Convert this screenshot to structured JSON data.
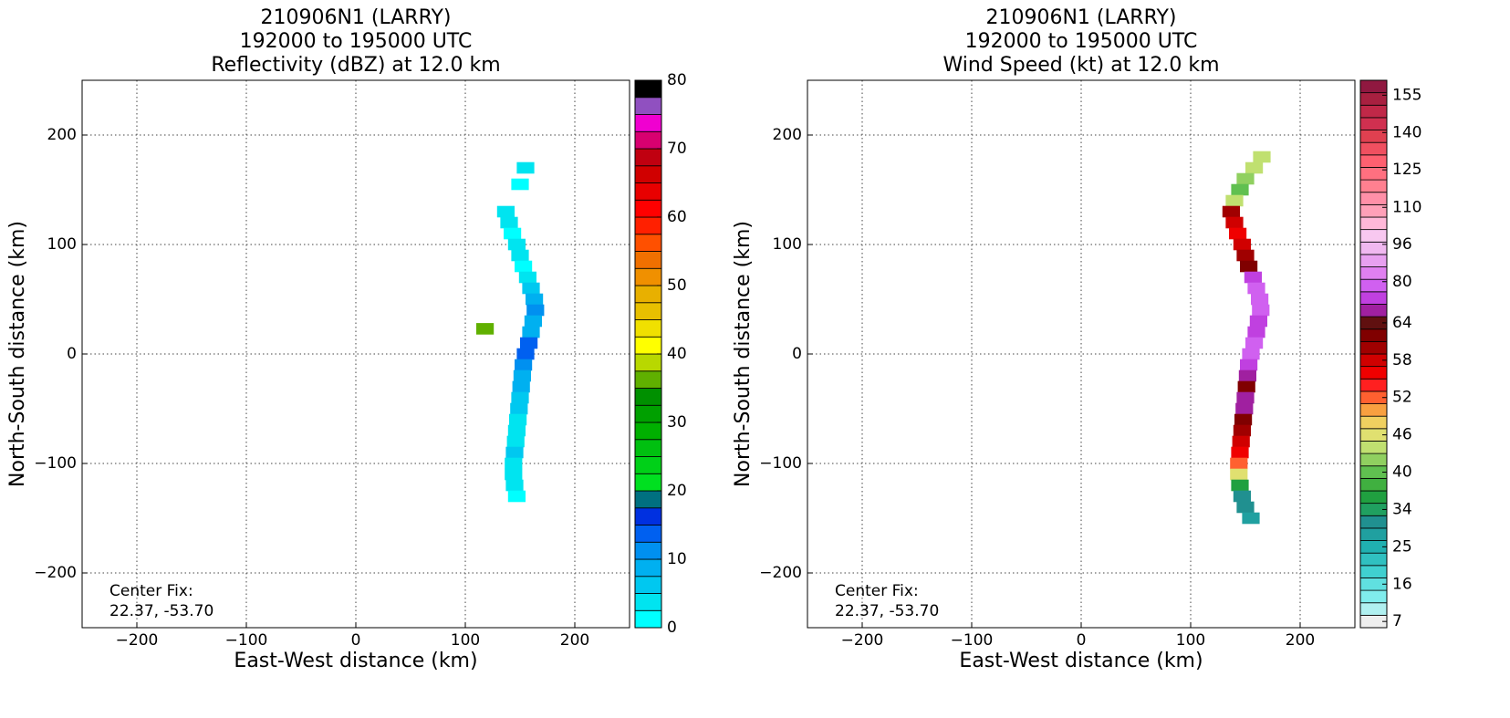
{
  "chart_data": [
    {
      "type": "heatmap",
      "title": [
        "210906N1 (LARRY)",
        "192000 to 195000 UTC",
        "Reflectivity (dBZ) at 12.0 km"
      ],
      "xlabel": "East-West distance (km)",
      "ylabel": "North-South distance (km)",
      "xlim": [
        -250,
        250
      ],
      "ylim": [
        -250,
        250
      ],
      "xticks": [
        {
          "value": -200,
          "label": "−200"
        },
        {
          "value": -100,
          "label": "−100"
        },
        0,
        100,
        200
      ],
      "yticks": [
        {
          "value": -200,
          "label": "−200"
        },
        {
          "value": -100,
          "label": "−100"
        },
        0,
        100,
        200
      ],
      "grid": true,
      "annotation": [
        "Center Fix:",
        "22.37, -53.70"
      ],
      "x": [
        137,
        140,
        143,
        147,
        150,
        153,
        157,
        160,
        163,
        164,
        162,
        160,
        158,
        155,
        153,
        152,
        151,
        150,
        149,
        148,
        147,
        146,
        145,
        144,
        144,
        145,
        147,
        118,
        155,
        150
      ],
      "y": [
        130,
        120,
        110,
        100,
        90,
        80,
        70,
        60,
        50,
        40,
        30,
        20,
        10,
        0,
        -10,
        -20,
        -30,
        -40,
        -50,
        -60,
        -70,
        -80,
        -90,
        -100,
        -110,
        -120,
        -130,
        23,
        170,
        155
      ],
      "values": [
        3,
        4,
        2,
        5,
        3,
        2,
        4,
        6,
        8,
        12,
        10,
        9,
        13,
        14,
        12,
        10,
        8,
        7,
        6,
        5,
        5,
        4,
        6,
        5,
        4,
        3,
        2,
        37,
        3,
        2
      ],
      "colorbar": {
        "bounds": [
          0,
          2.5,
          5,
          7.5,
          10,
          12.5,
          15,
          17.5,
          20,
          22.5,
          25,
          27.5,
          30,
          32.5,
          35,
          37.5,
          40,
          42.5,
          45,
          47.5,
          50,
          52.5,
          55,
          57.5,
          60,
          62.5,
          65,
          67.5,
          70,
          72.5,
          75,
          77.5,
          80
        ],
        "colors": [
          "#00ffff",
          "#00e4f0",
          "#00c8f0",
          "#00b0f0",
          "#0090f0",
          "#0060f0",
          "#0030e0",
          "#007080",
          "#00e020",
          "#00d018",
          "#00c010",
          "#00b000",
          "#00a000",
          "#009000",
          "#60b000",
          "#b8d800",
          "#ffff00",
          "#f0e000",
          "#e8c000",
          "#e8b000",
          "#f09000",
          "#f07000",
          "#ff5000",
          "#ff2000",
          "#ff0000",
          "#e80000",
          "#d00000",
          "#c00010",
          "#d80070",
          "#f000d0",
          "#9050c0",
          "#000000"
        ],
        "ticks": [
          0,
          10,
          20,
          30,
          40,
          50,
          60,
          70,
          80
        ]
      }
    },
    {
      "type": "heatmap",
      "title": [
        "210906N1 (LARRY)",
        "192000 to 195000 UTC",
        "Wind Speed (kt) at 12.0 km"
      ],
      "xlabel": "East-West distance (km)",
      "ylabel": "North-South distance (km)",
      "xlim": [
        -250,
        250
      ],
      "ylim": [
        -250,
        250
      ],
      "xticks": [
        {
          "value": -200,
          "label": "−200"
        },
        {
          "value": -100,
          "label": "−100"
        },
        0,
        100,
        200
      ],
      "yticks": [
        {
          "value": -200,
          "label": "−200"
        },
        {
          "value": -100,
          "label": "−100"
        },
        0,
        100,
        200
      ],
      "grid": true,
      "annotation": [
        "Center Fix:",
        "22.37, -53.70"
      ],
      "x": [
        165,
        158,
        150,
        145,
        140,
        137,
        140,
        143,
        147,
        150,
        153,
        157,
        160,
        163,
        164,
        162,
        160,
        158,
        155,
        153,
        152,
        151,
        150,
        149,
        148,
        147,
        146,
        145,
        144,
        144,
        145,
        147,
        150,
        155
      ],
      "y": [
        180,
        170,
        160,
        150,
        140,
        130,
        120,
        110,
        100,
        90,
        80,
        70,
        60,
        50,
        40,
        30,
        20,
        10,
        0,
        -10,
        -20,
        -30,
        -40,
        -50,
        -60,
        -70,
        -80,
        -90,
        -100,
        -110,
        -120,
        -130,
        -140,
        -150
      ],
      "values": [
        45,
        44,
        42,
        40,
        44,
        60,
        58,
        56,
        58,
        60,
        62,
        75,
        78,
        80,
        76,
        72,
        74,
        78,
        76,
        72,
        66,
        62,
        70,
        66,
        62,
        60,
        58,
        56,
        52,
        46,
        36,
        32,
        30,
        28
      ],
      "colorbar": {
        "bounds": [
          5.5,
          8.5,
          11.5,
          14.5,
          17.5,
          20.5,
          23.5,
          26.5,
          29.5,
          32.5,
          35.5,
          37,
          39,
          41,
          43,
          45,
          47,
          49,
          51,
          53,
          55,
          57,
          59,
          61,
          63,
          65,
          70.3,
          75.7,
          81,
          86.3,
          91.7,
          97,
          101.7,
          106.3,
          111,
          116,
          121,
          126,
          131,
          136,
          141,
          146,
          151,
          156,
          160
        ],
        "colors": [
          "#eeeeee",
          "#b0f0f0",
          "#80ecec",
          "#60e0e0",
          "#40d0d0",
          "#30c0c0",
          "#20b0b0",
          "#20a0a0",
          "#209090",
          "#20a060",
          "#20a040",
          "#40b040",
          "#60c050",
          "#90d060",
          "#c0e070",
          "#e0e070",
          "#f0d060",
          "#f8a040",
          "#ff6030",
          "#ff2020",
          "#f00000",
          "#d00000",
          "#a00000",
          "#800000",
          "#601010",
          "#a020a0",
          "#c040e0",
          "#d060f0",
          "#e080f0",
          "#e8a0f0",
          "#f0b8f0",
          "#f8c8f0",
          "#ffb8d8",
          "#ffa0b8",
          "#ff90a8",
          "#ff8090",
          "#ff7080",
          "#ff6070",
          "#f05060",
          "#e04050",
          "#d03050",
          "#c02848",
          "#a82040",
          "#901840"
        ],
        "ticks": [
          7,
          16,
          25,
          34,
          40,
          46,
          52,
          58,
          64,
          80,
          96,
          110,
          125,
          140,
          155
        ]
      }
    }
  ]
}
